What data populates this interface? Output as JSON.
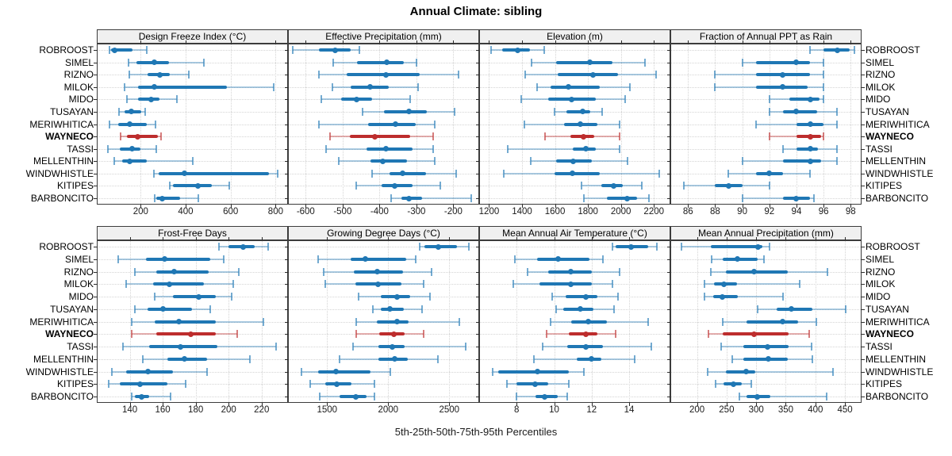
{
  "title": "Annual Climate: sibling",
  "caption": "5th-25th-50th-75th-95th Percentiles",
  "percentile_labels": [
    "5th",
    "25th",
    "50th",
    "75th",
    "95th"
  ],
  "sites": [
    "ROBROOST",
    "SIMEL",
    "RIZNO",
    "MILOK",
    "MIDO",
    "TUSAYAN",
    "MERIWHITICA",
    "WAYNECO",
    "TASSI",
    "MELLENTHIN",
    "WINDWHISTLE",
    "KITIPES",
    "BARBONCITO"
  ],
  "highlight_site": "WAYNECO",
  "colors": {
    "series": "#1f77b4",
    "highlight": "#bd2d2d",
    "strip_bg": "#f0f0f0",
    "panel_border": "#3c3c3c",
    "grid": "#d4d4d4",
    "tick": "#2a2a2a"
  },
  "chart_data": {
    "type": "scatter",
    "subtype": "trellis percentile dot plot (5-25-50-75-95 whisker ranges per site)",
    "legend_position": "none",
    "grid": "dotted",
    "categories": [
      "ROBROOST",
      "SIMEL",
      "RIZNO",
      "MILOK",
      "MIDO",
      "TUSAYAN",
      "MERIWHITICA",
      "WAYNECO",
      "TASSI",
      "MELLENTHIN",
      "WINDWHISTLE",
      "KITIPES",
      "BARBONCITO"
    ],
    "highlight_category": "WAYNECO",
    "panels": [
      {
        "title": "Design Freeze Index (°C)",
        "row": 0,
        "col": 0,
        "xlim": [
          5,
          855
        ],
        "ticks": [
          200,
          400,
          600,
          800
        ],
        "values": [
          [
            61,
            70,
            83,
            164,
            228
          ],
          [
            145,
            180,
            260,
            325,
            480
          ],
          [
            150,
            230,
            287,
            330,
            415
          ],
          [
            130,
            188,
            260,
            585,
            790
          ],
          [
            140,
            188,
            247,
            285,
            360
          ],
          [
            105,
            130,
            159,
            202,
            220
          ],
          [
            60,
            100,
            153,
            228,
            267
          ],
          [
            112,
            138,
            185,
            278,
            292
          ],
          [
            55,
            108,
            161,
            199,
            271
          ],
          [
            82,
            118,
            153,
            228,
            432
          ],
          [
            258,
            280,
            395,
            770,
            810
          ],
          [
            330,
            345,
            455,
            515,
            595
          ],
          [
            263,
            271,
            295,
            374,
            457
          ]
        ]
      },
      {
        "title": "Effective Precipitation (mm)",
        "row": 0,
        "col": 1,
        "xlim": [
          -648,
          -130
        ],
        "ticks": [
          -600,
          -500,
          -400,
          -300,
          -200
        ],
        "values": [
          [
            -635,
            -565,
            -520,
            -478,
            -455
          ],
          [
            -525,
            -462,
            -380,
            -335,
            -300
          ],
          [
            -565,
            -488,
            -382,
            -292,
            -185
          ],
          [
            -528,
            -478,
            -425,
            -375,
            -295
          ],
          [
            -558,
            -503,
            -463,
            -420,
            -318
          ],
          [
            -445,
            -387,
            -320,
            -272,
            -196
          ],
          [
            -565,
            -430,
            -357,
            -302,
            -250
          ],
          [
            -535,
            -480,
            -413,
            -318,
            -255
          ],
          [
            -545,
            -435,
            -383,
            -310,
            -255
          ],
          [
            -510,
            -425,
            -392,
            -325,
            -250
          ],
          [
            -420,
            -373,
            -338,
            -275,
            -192
          ],
          [
            -463,
            -395,
            -358,
            -310,
            -236
          ],
          [
            -368,
            -340,
            -320,
            -285,
            -152
          ]
        ]
      },
      {
        "title": "Elevation (m)",
        "row": 0,
        "col": 2,
        "xlim": [
          1140,
          2300
        ],
        "ticks": [
          1200,
          1400,
          1600,
          1800,
          2000,
          2200
        ],
        "values": [
          [
            1210,
            1278,
            1373,
            1447,
            1533
          ],
          [
            1460,
            1607,
            1812,
            1948,
            2146
          ],
          [
            1420,
            1615,
            1830,
            1983,
            2215
          ],
          [
            1492,
            1575,
            1681,
            1870,
            2056
          ],
          [
            1396,
            1558,
            1699,
            1846,
            2024
          ],
          [
            1598,
            1669,
            1766,
            1816,
            1888
          ],
          [
            1416,
            1655,
            1754,
            1855,
            1991
          ],
          [
            1540,
            1694,
            1771,
            1839,
            1991
          ],
          [
            1315,
            1709,
            1787,
            1847,
            1991
          ],
          [
            1452,
            1605,
            1710,
            1824,
            2041
          ],
          [
            1290,
            1598,
            1705,
            1871,
            2234
          ],
          [
            1760,
            1879,
            1956,
            2010,
            2129
          ],
          [
            1776,
            1913,
            2040,
            2096,
            2169
          ]
        ]
      },
      {
        "title": "Fraction of Annual PPT as Rain",
        "row": 0,
        "col": 3,
        "xlim": [
          84.7,
          98.8
        ],
        "ticks": [
          86,
          88,
          90,
          92,
          94,
          96,
          98
        ],
        "values": [
          [
            95,
            96,
            97,
            97.9,
            98.3
          ],
          [
            90,
            91,
            94,
            95,
            96
          ],
          [
            88,
            91,
            93,
            95,
            96
          ],
          [
            88,
            91,
            93,
            94.8,
            96
          ],
          [
            92,
            93.5,
            95,
            95.7,
            96
          ],
          [
            92,
            93,
            94,
            95.5,
            97
          ],
          [
            91,
            94,
            95,
            96,
            97
          ],
          [
            92,
            94,
            95,
            95.8,
            96
          ],
          [
            93,
            94,
            95,
            95.6,
            97
          ],
          [
            90,
            93,
            95,
            95.8,
            97
          ],
          [
            89,
            91,
            92,
            93,
            95
          ],
          [
            85.7,
            88,
            89,
            90,
            92
          ],
          [
            90,
            93,
            94,
            95,
            95.3
          ]
        ]
      },
      {
        "title": "Frost-Free Days",
        "row": 1,
        "col": 0,
        "xlim": [
          120,
          236
        ],
        "ticks": [
          140,
          160,
          180,
          200,
          220
        ],
        "values": [
          [
            194,
            200,
            209,
            216,
            224
          ],
          [
            133,
            150,
            161,
            189,
            197
          ],
          [
            143,
            156,
            167,
            188,
            206
          ],
          [
            138,
            154,
            164,
            185,
            203
          ],
          [
            155,
            166,
            182,
            192,
            202
          ],
          [
            143,
            151,
            160,
            178,
            189
          ],
          [
            141,
            155,
            170,
            192,
            221
          ],
          [
            141,
            156,
            177,
            192,
            205
          ],
          [
            136,
            152,
            171,
            193,
            229
          ],
          [
            148,
            163,
            173,
            187,
            213
          ],
          [
            129,
            138,
            151,
            166,
            187
          ],
          [
            127,
            134,
            146,
            163,
            174
          ],
          [
            141,
            143,
            147,
            152,
            165
          ]
        ]
      },
      {
        "title": "Growing Degree Days (°C)",
        "row": 1,
        "col": 1,
        "xlim": [
          1180,
          2745
        ],
        "ticks": [
          1500,
          2000,
          2500
        ],
        "values": [
          [
            2255,
            2300,
            2410,
            2560,
            2660
          ],
          [
            1430,
            1690,
            1810,
            2150,
            2225
          ],
          [
            1475,
            1720,
            1910,
            2120,
            2355
          ],
          [
            1485,
            1730,
            1920,
            2110,
            2290
          ],
          [
            1755,
            1940,
            2070,
            2180,
            2345
          ],
          [
            1875,
            1940,
            2015,
            2125,
            2280
          ],
          [
            1740,
            1910,
            2070,
            2170,
            2580
          ],
          [
            1740,
            1930,
            2050,
            2135,
            2290
          ],
          [
            1713,
            1920,
            2035,
            2135,
            2635
          ],
          [
            1605,
            1920,
            2055,
            2160,
            2410
          ],
          [
            1290,
            1430,
            1570,
            1855,
            2015
          ],
          [
            1365,
            1485,
            1578,
            1700,
            1885
          ],
          [
            1440,
            1605,
            1735,
            1820,
            1885
          ]
        ]
      },
      {
        "title": "Mean Annual Air Temperature (°C)",
        "row": 1,
        "col": 2,
        "xlim": [
          6.0,
          16.2
        ],
        "ticks": [
          8,
          10,
          12,
          14
        ],
        "values": [
          [
            13.1,
            13.3,
            14.1,
            15.0,
            15.5
          ],
          [
            7.9,
            9.1,
            10.2,
            11.9,
            12.6
          ],
          [
            8.6,
            9.7,
            10.9,
            12.0,
            13.5
          ],
          [
            7.8,
            9.2,
            10.9,
            12.0,
            13.1
          ],
          [
            9.9,
            10.6,
            11.7,
            12.3,
            13.4
          ],
          [
            10.1,
            10.5,
            11.4,
            12.1,
            13.2
          ],
          [
            9.8,
            10.9,
            11.8,
            12.8,
            15.0
          ],
          [
            9.6,
            10.8,
            11.7,
            12.3,
            13.3
          ],
          [
            9.4,
            10.7,
            11.7,
            12.6,
            15.2
          ],
          [
            8.9,
            11.2,
            12.0,
            12.5,
            14.3
          ],
          [
            6.7,
            7.0,
            9.1,
            10.8,
            11.6
          ],
          [
            7.5,
            8.0,
            9.0,
            9.7,
            10.8
          ],
          [
            8.0,
            9.0,
            9.5,
            10.2,
            10.7
          ]
        ]
      },
      {
        "title": "Mean Annual Precipitation (mm)",
        "row": 1,
        "col": 3,
        "xlim": [
          155,
          478
        ],
        "ticks": [
          200,
          250,
          300,
          350,
          400,
          450
        ],
        "values": [
          [
            174,
            224,
            303,
            310,
            323
          ],
          [
            225,
            243,
            268,
            302,
            313
          ],
          [
            223,
            249,
            296,
            353,
            421
          ],
          [
            212,
            229,
            246,
            267,
            373
          ],
          [
            212,
            228,
            243,
            269,
            345
          ],
          [
            302,
            335,
            360,
            395,
            451
          ],
          [
            244,
            283,
            344,
            371,
            402
          ],
          [
            219,
            243,
            296,
            355,
            390
          ],
          [
            241,
            278,
            319,
            355,
            393
          ],
          [
            259,
            278,
            321,
            353,
            395
          ],
          [
            218,
            249,
            283,
            298,
            430
          ],
          [
            231,
            245,
            261,
            276,
            292
          ],
          [
            272,
            283,
            302,
            324,
            419
          ]
        ]
      }
    ]
  }
}
